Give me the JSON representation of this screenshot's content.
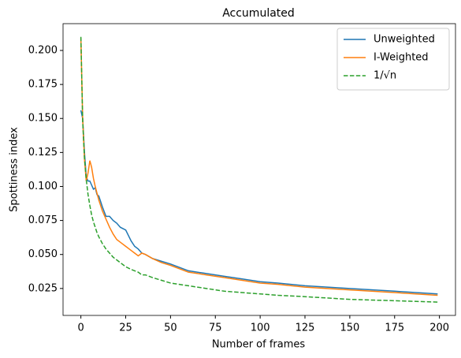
{
  "chart_data": {
    "type": "line",
    "title": "Accumulated",
    "x_label": "Number of frames",
    "y_label": "Spottiness index",
    "x": [
      0,
      1,
      2,
      3,
      4,
      5,
      6,
      7,
      8,
      9,
      10,
      12,
      14,
      16,
      18,
      20,
      22,
      25,
      28,
      30,
      32,
      34,
      36,
      40,
      45,
      50,
      60,
      70,
      80,
      90,
      100,
      110,
      125,
      150,
      175,
      199
    ],
    "series": [
      {
        "name": "Unweighted",
        "color": "#1f77b4",
        "linestyle": "solid",
        "values": [
          0.156,
          0.15,
          0.125,
          0.107,
          0.104,
          0.104,
          0.101,
          0.098,
          0.099,
          0.094,
          0.093,
          0.085,
          0.078,
          0.078,
          0.075,
          0.073,
          0.07,
          0.068,
          0.06,
          0.056,
          0.054,
          0.051,
          0.05,
          0.047,
          0.045,
          0.043,
          0.038,
          0.036,
          0.034,
          0.032,
          0.03,
          0.029,
          0.027,
          0.025,
          0.023,
          0.021
        ]
      },
      {
        "name": "I-Weighted",
        "color": "#ff7f0e",
        "linestyle": "solid",
        "values": [
          0.209,
          0.15,
          0.12,
          0.104,
          0.11,
          0.119,
          0.114,
          0.106,
          0.1,
          0.095,
          0.09,
          0.082,
          0.076,
          0.07,
          0.065,
          0.061,
          0.059,
          0.056,
          0.053,
          0.051,
          0.049,
          0.051,
          0.05,
          0.047,
          0.044,
          0.042,
          0.037,
          0.035,
          0.033,
          0.031,
          0.029,
          0.028,
          0.026,
          0.024,
          0.022,
          0.02
        ]
      },
      {
        "name": "1/√n",
        "color": "#2ca02c",
        "linestyle": "dashed",
        "values": [
          0.21,
          0.148,
          0.121,
          0.105,
          0.094,
          0.086,
          0.079,
          0.074,
          0.07,
          0.066,
          0.063,
          0.058,
          0.054,
          0.051,
          0.048,
          0.046,
          0.044,
          0.041,
          0.039,
          0.038,
          0.037,
          0.035,
          0.035,
          0.033,
          0.031,
          0.029,
          0.027,
          0.025,
          0.023,
          0.022,
          0.021,
          0.02,
          0.019,
          0.017,
          0.016,
          0.015
        ]
      }
    ],
    "xlim": [
      -9.95,
      208.95
    ],
    "xticks": [
      0,
      25,
      50,
      75,
      100,
      125,
      150,
      175,
      200
    ],
    "ylim": [
      0.0052,
      0.2197
    ],
    "yticks": [
      0.025,
      {
        "value": 0.05,
        "label": "0.050"
      },
      0.075,
      {
        "value": 0.1,
        "label": "0.100"
      },
      0.125,
      {
        "value": 0.15,
        "label": "0.150"
      },
      0.175,
      {
        "value": 0.2,
        "label": "0.200"
      }
    ],
    "legend": "upper right"
  }
}
